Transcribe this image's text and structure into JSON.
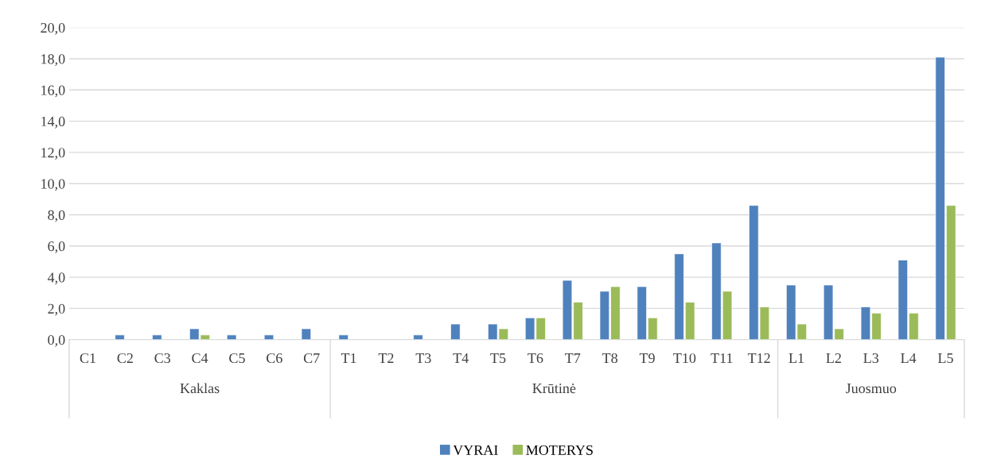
{
  "chart_data": {
    "type": "bar",
    "categories": [
      "C1",
      "C2",
      "C3",
      "C4",
      "C5",
      "C6",
      "C7",
      "T1",
      "T2",
      "T3",
      "T4",
      "T5",
      "T6",
      "T7",
      "T8",
      "T9",
      "T10",
      "T11",
      "T12",
      "L1",
      "L2",
      "L3",
      "L4",
      "L5"
    ],
    "series": [
      {
        "name": "VYRAI",
        "color": "#4f81bd",
        "values": [
          null,
          0.3,
          0.3,
          0.7,
          0.3,
          0.3,
          0.7,
          0.3,
          null,
          0.3,
          1.0,
          1.0,
          1.4,
          3.8,
          3.1,
          3.4,
          5.5,
          6.2,
          8.6,
          3.5,
          3.5,
          2.1,
          5.1,
          18.1
        ]
      },
      {
        "name": "MOTERYS",
        "color": "#9bbb59",
        "values": [
          null,
          null,
          null,
          0.3,
          null,
          null,
          null,
          null,
          null,
          null,
          null,
          0.7,
          1.4,
          2.4,
          3.4,
          1.4,
          2.4,
          3.1,
          2.1,
          1.0,
          0.7,
          1.7,
          1.7,
          8.6
        ]
      }
    ],
    "ylim": [
      0,
      20
    ],
    "yticks": [
      {
        "value": 0,
        "label": "0,0"
      },
      {
        "value": 2,
        "label": "2,0"
      },
      {
        "value": 4,
        "label": "4,0"
      },
      {
        "value": 6,
        "label": "6,0"
      },
      {
        "value": 8,
        "label": "8,0"
      },
      {
        "value": 10,
        "label": "10,0"
      },
      {
        "value": 12,
        "label": "12,0"
      },
      {
        "value": 14,
        "label": "14,0"
      },
      {
        "value": 16,
        "label": "16,0"
      },
      {
        "value": 18,
        "label": "18,0"
      },
      {
        "value": 20,
        "label": "20,0"
      }
    ],
    "annotations": [
      "Kaklas",
      "Krūtinė",
      "Juosmuo"
    ],
    "grid": "y",
    "legend": "bottom"
  }
}
